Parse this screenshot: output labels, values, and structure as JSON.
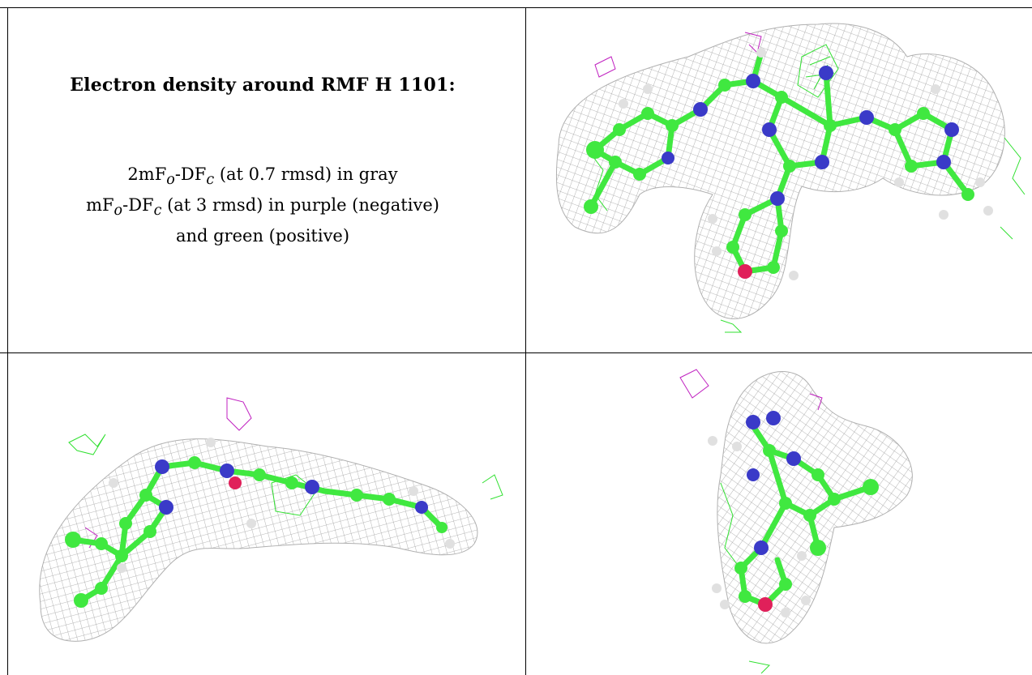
{
  "caption": {
    "title": "Electron density around RMF H 1101:",
    "line1_a": "2mF",
    "line1_sub1": "o",
    "line1_b": "-DF",
    "line1_sub2": "c",
    "line1_c": " (at 0.7 rmsd) in gray",
    "line2_a": "mF",
    "line2_sub1": "o",
    "line2_b": "-DF",
    "line2_sub2": "c",
    "line2_c": " (at 3 rmsd) in purple (negative)",
    "line3": "and green (positive)"
  },
  "colors": {
    "mesh_gray": "#9a9a9a",
    "mesh_purple": "#c020c0",
    "mesh_green": "#30e030",
    "carbon": "#40e840",
    "nitrogen": "#3a3ac8",
    "oxygen": "#e0205a",
    "hydrogen": "#e0e0e0"
  },
  "panels": [
    {
      "id": "top-right",
      "view": "face-on ligament view"
    },
    {
      "id": "bottom-left",
      "view": "side view"
    },
    {
      "id": "bottom-right",
      "view": "end-on view"
    }
  ]
}
